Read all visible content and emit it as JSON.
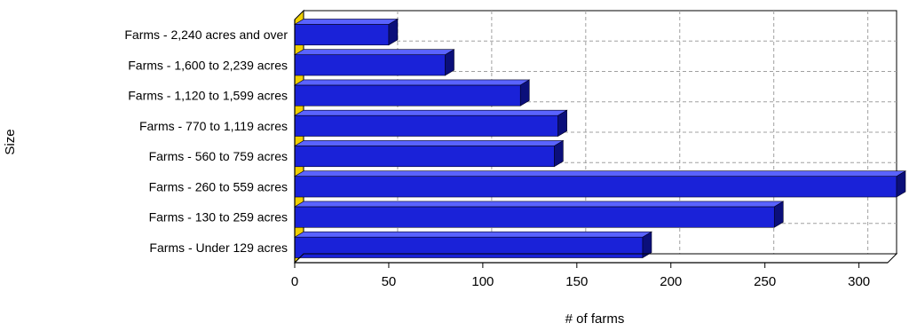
{
  "chart_data": {
    "type": "bar",
    "orientation": "horizontal",
    "style": "3d",
    "categories": [
      "Farms - 2,240 acres and over",
      "Farms - 1,600 to 2,239 acres",
      "Farms - 1,120 to 1,599 acres",
      "Farms - 770 to 1,119 acres",
      "Farms - 560 to 759 acres",
      "Farms - 260 to 559 acres",
      "Farms - 130 to 259 acres",
      "Farms - Under 129 acres"
    ],
    "values": [
      50,
      80,
      120,
      140,
      138,
      320,
      255,
      185
    ],
    "xlabel": "# of farms",
    "ylabel": "Size",
    "xlim": [
      0,
      320
    ],
    "xticks": [
      0,
      50,
      100,
      150,
      200,
      250,
      300
    ],
    "grid": true,
    "colors": {
      "bar_front": "#1a22d8",
      "bar_top": "#5a63ff",
      "bar_side": "#0b0f7a",
      "wall_floor": "#f0d000",
      "grid": "#a0a0a0",
      "axis": "#000000"
    }
  }
}
